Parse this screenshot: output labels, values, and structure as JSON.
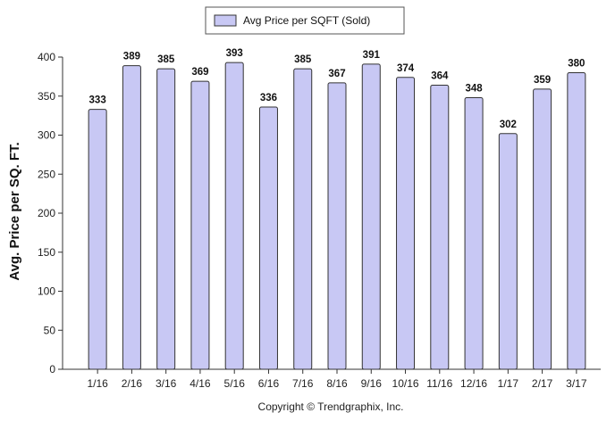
{
  "chart_data": {
    "type": "bar",
    "categories": [
      "1/16",
      "2/16",
      "3/16",
      "4/16",
      "5/16",
      "6/16",
      "7/16",
      "8/16",
      "9/16",
      "10/16",
      "11/16",
      "12/16",
      "1/17",
      "2/17",
      "3/17"
    ],
    "series": [
      {
        "name": "Avg Price per SQFT (Sold)",
        "values": [
          333,
          389,
          385,
          369,
          393,
          336,
          385,
          367,
          391,
          374,
          364,
          348,
          302,
          359,
          380
        ]
      }
    ],
    "data_labels": [
      "333",
      "389",
      "385",
      "369",
      "393",
      "336",
      "385",
      "367",
      "391",
      "374",
      "364",
      "348",
      "302",
      "359",
      "380"
    ],
    "ylabel": "Avg. Price per SQ. FT.",
    "xlabel": "",
    "ylim": [
      0,
      400
    ],
    "yticks": [
      0,
      50,
      100,
      150,
      200,
      250,
      300,
      350,
      400
    ],
    "grid": false,
    "legend_position": "top-center",
    "colors": {
      "bar_fill": "#c8c8f4",
      "bar_stroke": "#333333"
    }
  },
  "footer": {
    "copyright": "Copyright © Trendgraphix, Inc."
  }
}
